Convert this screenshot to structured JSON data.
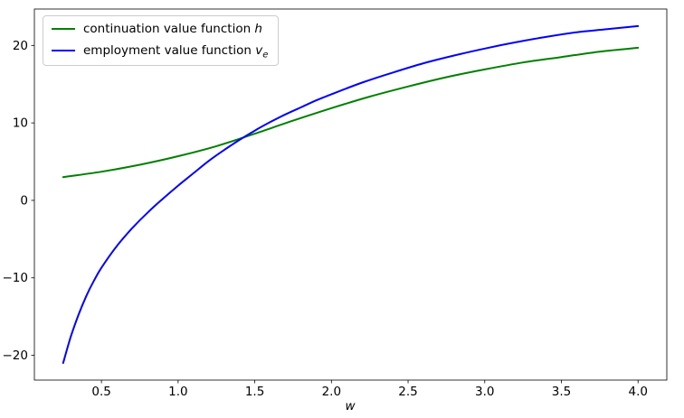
{
  "chart_data": {
    "type": "line",
    "title": "",
    "xlabel": "w",
    "ylabel": "",
    "grid": false,
    "legend_position": "upper left",
    "xlim": [
      0.0625,
      4.1875
    ],
    "ylim": [
      -23.2,
      24.7
    ],
    "xtick_values": [
      0.5,
      1.0,
      1.5,
      2.0,
      2.5,
      3.0,
      3.5,
      4.0
    ],
    "xtick_labels": [
      "0.5",
      "1.0",
      "1.5",
      "2.0",
      "2.5",
      "3.0",
      "3.5",
      "4.0"
    ],
    "ytick_values": [
      -20,
      -10,
      0,
      10,
      20
    ],
    "ytick_labels": [
      "−20",
      "−10",
      "0",
      "10",
      "20"
    ],
    "series": [
      {
        "id": "h",
        "name": "continuation value function h",
        "color": "#008000",
        "x": [
          0.25,
          0.5,
          0.75,
          1.0,
          1.25,
          1.5,
          1.75,
          2.0,
          2.25,
          2.5,
          2.75,
          3.0,
          3.25,
          3.5,
          3.75,
          4.0
        ],
        "y": [
          3.0,
          3.7,
          4.6,
          5.7,
          7.0,
          8.6,
          10.3,
          11.9,
          13.4,
          14.7,
          15.9,
          16.9,
          17.8,
          18.5,
          19.2,
          19.7
        ]
      },
      {
        "id": "v_e",
        "name": "employment value function v_e",
        "color": "#0000ff",
        "x": [
          0.25,
          0.3,
          0.35,
          0.4,
          0.45,
          0.5,
          0.6,
          0.7,
          0.8,
          0.9,
          1.0,
          1.1,
          1.2,
          1.3,
          1.4,
          1.5,
          1.6,
          1.7,
          1.8,
          1.9,
          2.0,
          2.2,
          2.4,
          2.6,
          2.8,
          3.0,
          3.2,
          3.4,
          3.6,
          3.8,
          4.0
        ],
        "y": [
          -21.0,
          -17.6,
          -14.8,
          -12.4,
          -10.4,
          -8.7,
          -5.9,
          -3.6,
          -1.6,
          0.2,
          1.9,
          3.5,
          5.1,
          6.5,
          7.8,
          9.0,
          10.1,
          11.1,
          12.0,
          12.9,
          13.7,
          15.2,
          16.5,
          17.7,
          18.7,
          19.6,
          20.4,
          21.1,
          21.7,
          22.1,
          22.5
        ]
      }
    ]
  },
  "legend": {
    "entries": [
      {
        "text": "continuation value function ",
        "math": "h",
        "sub": ""
      },
      {
        "text": "employment value function ",
        "math": "v",
        "sub": "e"
      }
    ]
  }
}
